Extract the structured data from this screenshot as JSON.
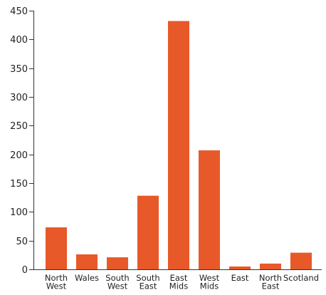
{
  "chart_data": {
    "type": "bar",
    "title": "",
    "xlabel": "",
    "ylabel": "",
    "categories": [
      [
        "North",
        "West"
      ],
      [
        "Wales"
      ],
      [
        "South",
        "West"
      ],
      [
        "South",
        "East"
      ],
      [
        "East",
        "Mids"
      ],
      [
        "West",
        "Mids"
      ],
      [
        "East"
      ],
      [
        "North",
        "East"
      ],
      [
        "Scotland"
      ]
    ],
    "values": [
      73,
      26,
      21,
      128,
      432,
      207,
      5,
      10,
      29
    ],
    "ylim": [
      0,
      450
    ],
    "yticks": [
      0,
      50,
      100,
      150,
      200,
      250,
      300,
      350,
      400,
      450
    ],
    "bar_color": "#e8592a",
    "grid": false,
    "legend": "none"
  }
}
